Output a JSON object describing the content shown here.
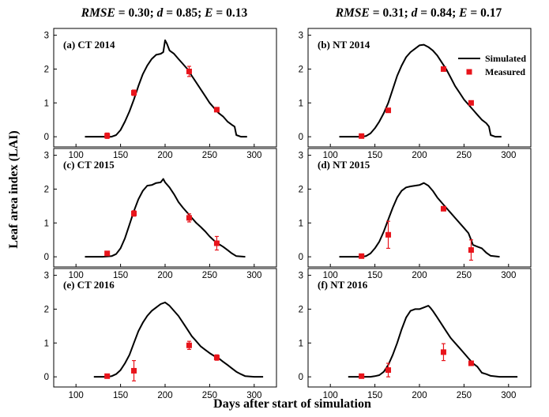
{
  "figure": {
    "ylabel": "Leaf area index (LAI)",
    "xlabel": "Days after start of simulation",
    "column_titles": [
      {
        "metric1": "RMSE",
        "val1": " = 0.30; ",
        "metric2": "d",
        "val2": " = 0.85; ",
        "metric3": "E",
        "val3": " = 0.13"
      },
      {
        "metric1": "RMSE",
        "val1": " = 0.31; ",
        "metric2": "d",
        "val2": " = 0.84; ",
        "metric3": "E",
        "val3": " = 0.17"
      }
    ],
    "legend": {
      "simulated": "Simulated",
      "measured": "Measured"
    },
    "colors": {
      "simulated": "#000000",
      "measured": "#e8141b"
    }
  },
  "chart_data": [
    {
      "type": "line",
      "label": "(a) CT 2014",
      "xlim": [
        75,
        325
      ],
      "ylim": [
        -0.3,
        3.2
      ],
      "xticks": [
        100,
        150,
        200,
        250,
        300
      ],
      "yticks": [
        0,
        1,
        2,
        3
      ],
      "series": [
        {
          "name": "Simulated",
          "x": [
            110,
            130,
            140,
            145,
            150,
            155,
            160,
            165,
            170,
            175,
            180,
            185,
            190,
            195,
            198,
            200,
            202,
            205,
            210,
            215,
            220,
            225,
            230,
            235,
            240,
            245,
            250,
            255,
            260,
            265,
            270,
            275,
            278,
            280,
            285,
            292
          ],
          "y": [
            0,
            0,
            0,
            0.05,
            0.2,
            0.45,
            0.75,
            1.1,
            1.5,
            1.85,
            2.1,
            2.3,
            2.42,
            2.45,
            2.5,
            2.85,
            2.75,
            2.55,
            2.45,
            2.3,
            2.15,
            2.0,
            1.8,
            1.6,
            1.4,
            1.2,
            1.0,
            0.85,
            0.7,
            0.6,
            0.45,
            0.35,
            0.3,
            0.05,
            0,
            0
          ]
        },
        {
          "name": "Measured",
          "x": [
            135,
            165,
            227,
            258
          ],
          "y": [
            0.03,
            1.3,
            1.93,
            0.8
          ],
          "err": [
            0.08,
            0.08,
            0.15,
            0.06
          ]
        }
      ]
    },
    {
      "type": "line",
      "label": "(b) NT 2014",
      "xlim": [
        75,
        325
      ],
      "ylim": [
        -0.3,
        3.2
      ],
      "xticks": [
        100,
        150,
        200,
        250,
        300
      ],
      "yticks": [
        0,
        1,
        2,
        3
      ],
      "series": [
        {
          "name": "Simulated",
          "x": [
            110,
            130,
            135,
            140,
            145,
            150,
            155,
            160,
            165,
            170,
            175,
            180,
            185,
            190,
            195,
            200,
            205,
            210,
            215,
            220,
            225,
            230,
            235,
            240,
            245,
            250,
            255,
            260,
            265,
            270,
            275,
            278,
            280,
            285,
            292
          ],
          "y": [
            0,
            0,
            0,
            0.02,
            0.1,
            0.25,
            0.45,
            0.7,
            1.0,
            1.4,
            1.8,
            2.1,
            2.35,
            2.5,
            2.6,
            2.7,
            2.72,
            2.65,
            2.55,
            2.4,
            2.2,
            2.0,
            1.75,
            1.5,
            1.3,
            1.1,
            0.95,
            0.8,
            0.65,
            0.5,
            0.4,
            0.3,
            0.05,
            0,
            0
          ]
        },
        {
          "name": "Measured",
          "x": [
            135,
            165,
            227,
            258
          ],
          "y": [
            0.02,
            0.78,
            2.0,
            1.0
          ],
          "err": [
            0.06,
            0.06,
            0.06,
            0.06
          ]
        }
      ]
    },
    {
      "type": "line",
      "label": "(c) CT 2015",
      "xlim": [
        75,
        325
      ],
      "ylim": [
        -0.3,
        3.2
      ],
      "xticks": [
        100,
        150,
        200,
        250,
        300
      ],
      "yticks": [
        0,
        1,
        2,
        3
      ],
      "series": [
        {
          "name": "Simulated",
          "x": [
            110,
            130,
            140,
            145,
            150,
            155,
            160,
            165,
            170,
            175,
            180,
            185,
            190,
            195,
            198,
            200,
            205,
            210,
            215,
            220,
            225,
            230,
            235,
            240,
            245,
            250,
            255,
            260,
            265,
            270,
            275,
            280,
            290
          ],
          "y": [
            0,
            0,
            0.02,
            0.08,
            0.25,
            0.55,
            0.95,
            1.35,
            1.7,
            1.95,
            2.1,
            2.12,
            2.18,
            2.2,
            2.3,
            2.2,
            2.05,
            1.85,
            1.62,
            1.45,
            1.3,
            1.15,
            1.0,
            0.88,
            0.75,
            0.6,
            0.48,
            0.38,
            0.3,
            0.2,
            0.1,
            0.02,
            0
          ]
        },
        {
          "name": "Measured",
          "x": [
            135,
            165,
            227,
            258
          ],
          "y": [
            0.1,
            1.28,
            1.15,
            0.4
          ],
          "err": [
            0.06,
            0.08,
            0.12,
            0.2
          ]
        }
      ]
    },
    {
      "type": "line",
      "label": "(d) NT 2015",
      "xlim": [
        75,
        325
      ],
      "ylim": [
        -0.3,
        3.2
      ],
      "xticks": [
        100,
        150,
        200,
        250,
        300
      ],
      "yticks": [
        0,
        1,
        2,
        3
      ],
      "series": [
        {
          "name": "Simulated",
          "x": [
            110,
            130,
            135,
            140,
            145,
            150,
            155,
            160,
            165,
            170,
            175,
            180,
            185,
            190,
            195,
            200,
            205,
            210,
            215,
            220,
            225,
            230,
            235,
            240,
            245,
            250,
            255,
            258,
            260,
            265,
            270,
            275,
            280,
            290
          ],
          "y": [
            0,
            0,
            0,
            0.02,
            0.1,
            0.25,
            0.45,
            0.75,
            1.1,
            1.45,
            1.75,
            1.95,
            2.05,
            2.08,
            2.1,
            2.12,
            2.18,
            2.1,
            1.95,
            1.75,
            1.6,
            1.45,
            1.3,
            1.15,
            1.0,
            0.85,
            0.7,
            0.5,
            0.35,
            0.3,
            0.25,
            0.12,
            0.03,
            0
          ]
        },
        {
          "name": "Measured",
          "x": [
            135,
            165,
            227,
            258
          ],
          "y": [
            0.02,
            0.65,
            1.42,
            0.2
          ],
          "err": [
            0.06,
            0.4,
            0.06,
            0.3
          ]
        }
      ]
    },
    {
      "type": "line",
      "label": "(e) CT 2016",
      "xlim": [
        75,
        325
      ],
      "ylim": [
        -0.3,
        3.2
      ],
      "xticks": [
        100,
        150,
        200,
        250,
        300
      ],
      "yticks": [
        0,
        1,
        2,
        3
      ],
      "series": [
        {
          "name": "Simulated",
          "x": [
            120,
            135,
            140,
            145,
            150,
            155,
            160,
            165,
            170,
            175,
            180,
            185,
            190,
            195,
            200,
            205,
            210,
            215,
            220,
            225,
            230,
            235,
            240,
            245,
            250,
            255,
            260,
            265,
            270,
            275,
            280,
            285,
            290,
            300,
            310
          ],
          "y": [
            0,
            0,
            0.02,
            0.08,
            0.2,
            0.4,
            0.65,
            1.0,
            1.35,
            1.6,
            1.8,
            1.95,
            2.05,
            2.15,
            2.2,
            2.1,
            1.95,
            1.8,
            1.6,
            1.4,
            1.2,
            1.05,
            0.9,
            0.8,
            0.7,
            0.62,
            0.55,
            0.45,
            0.35,
            0.25,
            0.15,
            0.08,
            0.02,
            0,
            0
          ]
        },
        {
          "name": "Measured",
          "x": [
            135,
            165,
            227,
            258
          ],
          "y": [
            0.02,
            0.18,
            0.93,
            0.57
          ],
          "err": [
            0.06,
            0.3,
            0.12,
            0.08
          ]
        }
      ]
    },
    {
      "type": "line",
      "label": "(f) NT 2016",
      "xlim": [
        75,
        325
      ],
      "ylim": [
        -0.3,
        3.2
      ],
      "xticks": [
        100,
        150,
        200,
        250,
        300
      ],
      "yticks": [
        0,
        1,
        2,
        3
      ],
      "series": [
        {
          "name": "Simulated",
          "x": [
            120,
            135,
            140,
            145,
            150,
            155,
            160,
            165,
            170,
            175,
            180,
            185,
            190,
            195,
            200,
            205,
            210,
            212,
            215,
            220,
            225,
            230,
            235,
            240,
            245,
            250,
            255,
            260,
            265,
            270,
            275,
            280,
            290,
            300,
            310
          ],
          "y": [
            0,
            0,
            0,
            0,
            0.02,
            0.05,
            0.15,
            0.35,
            0.65,
            1.0,
            1.4,
            1.75,
            1.95,
            2.0,
            2.0,
            2.05,
            2.1,
            2.05,
            1.95,
            1.75,
            1.55,
            1.35,
            1.15,
            1.0,
            0.85,
            0.7,
            0.55,
            0.4,
            0.3,
            0.12,
            0.08,
            0.03,
            0,
            0,
            0
          ]
        },
        {
          "name": "Measured",
          "x": [
            135,
            165,
            227,
            258
          ],
          "y": [
            0.02,
            0.2,
            0.73,
            0.4
          ],
          "err": [
            0.06,
            0.2,
            0.25,
            0.06
          ]
        }
      ]
    }
  ]
}
